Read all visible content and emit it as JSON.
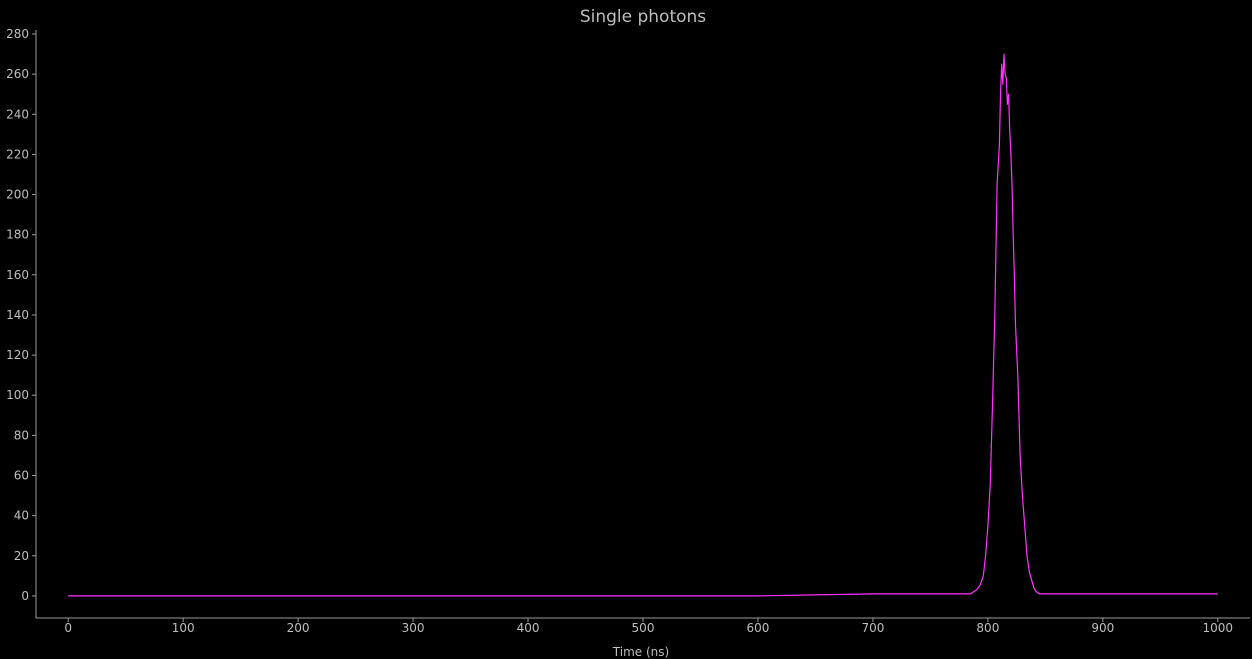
{
  "chart_data": {
    "type": "line",
    "title": "Single photons",
    "xlabel": "Time (ns)",
    "ylabel": "",
    "xlim": [
      -28,
      1028
    ],
    "ylim": [
      -11,
      282
    ],
    "x_ticks": [
      0,
      100,
      200,
      300,
      400,
      500,
      600,
      700,
      800,
      900,
      1000
    ],
    "y_ticks": [
      0,
      20,
      40,
      60,
      80,
      100,
      120,
      140,
      160,
      180,
      200,
      220,
      240,
      260,
      280
    ],
    "grid": false,
    "legend": "none",
    "series": [
      {
        "color": "#ff33ff",
        "x": [
          0,
          100,
          200,
          300,
          400,
          500,
          600,
          700,
          710,
          720,
          730,
          740,
          750,
          760,
          770,
          780,
          785,
          790,
          793,
          796,
          798,
          800,
          802,
          804,
          806,
          808,
          810,
          811,
          812,
          813,
          814,
          815,
          816,
          817,
          818,
          819,
          820,
          821,
          822,
          823,
          824,
          826,
          828,
          830,
          832,
          834,
          836,
          838,
          840,
          842,
          845,
          850,
          860,
          870,
          880,
          890,
          900,
          920,
          940,
          960,
          980,
          1000
        ],
        "y": [
          0,
          0,
          0,
          0,
          0,
          0,
          0,
          1,
          1,
          1,
          1,
          1,
          1,
          1,
          1,
          1,
          1,
          3,
          5,
          10,
          20,
          35,
          55,
          95,
          140,
          205,
          225,
          250,
          265,
          255,
          270,
          260,
          258,
          245,
          250,
          232,
          220,
          205,
          180,
          160,
          135,
          110,
          70,
          50,
          35,
          20,
          12,
          8,
          4,
          2,
          1,
          1,
          1,
          1,
          1,
          1,
          1,
          1,
          1,
          1,
          1,
          1
        ]
      }
    ]
  }
}
